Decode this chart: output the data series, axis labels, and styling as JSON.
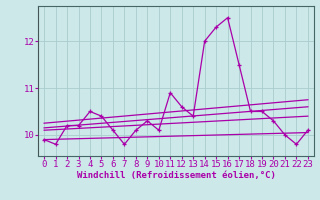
{
  "xlabel": "Windchill (Refroidissement éolien,°C)",
  "background_color": "#cce8e8",
  "grid_color": "#aacccc",
  "line_color": "#aa00aa",
  "x_hours": [
    0,
    1,
    2,
    3,
    4,
    5,
    6,
    7,
    8,
    9,
    10,
    11,
    12,
    13,
    14,
    15,
    16,
    17,
    18,
    19,
    20,
    21,
    22,
    23
  ],
  "windchill": [
    9.9,
    9.8,
    10.2,
    10.2,
    10.5,
    10.4,
    10.1,
    9.8,
    10.1,
    10.3,
    10.1,
    10.9,
    10.6,
    10.4,
    12.0,
    12.3,
    12.5,
    11.5,
    10.5,
    10.5,
    10.3,
    10.0,
    9.8,
    10.1
  ],
  "trend_lines": [
    {
      "x": [
        0,
        23
      ],
      "y": [
        9.9,
        10.05
      ]
    },
    {
      "x": [
        0,
        23
      ],
      "y": [
        10.1,
        10.4
      ]
    },
    {
      "x": [
        0,
        23
      ],
      "y": [
        10.15,
        10.6
      ]
    },
    {
      "x": [
        0,
        23
      ],
      "y": [
        10.25,
        10.75
      ]
    }
  ],
  "ylim": [
    9.55,
    12.75
  ],
  "xlim": [
    -0.5,
    23.5
  ],
  "yticks": [
    10,
    11,
    12
  ],
  "xtick_labels": [
    "0",
    "1",
    "2",
    "3",
    "4",
    "5",
    "6",
    "7",
    "8",
    "9",
    "10",
    "11",
    "12",
    "13",
    "14",
    "15",
    "16",
    "17",
    "18",
    "19",
    "20",
    "21",
    "22",
    "23"
  ],
  "xlabel_fontsize": 6.5,
  "tick_fontsize": 6.5,
  "ylabel_fontsize": 7
}
